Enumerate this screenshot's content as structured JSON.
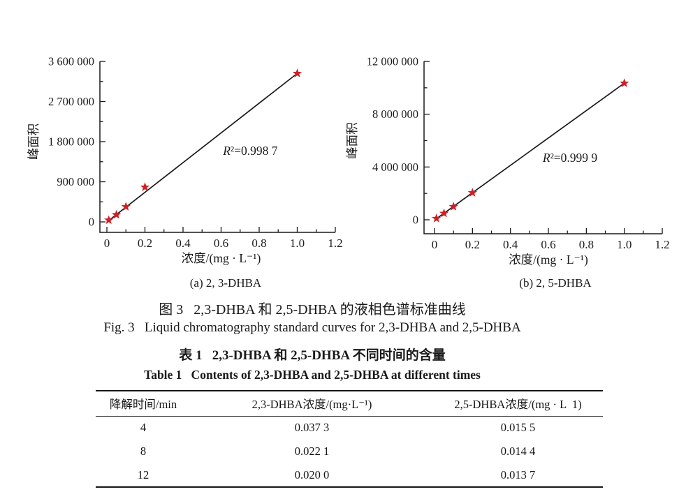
{
  "figure": {
    "caption_zh": "图 3   2,3-DHBA 和 2,5-DHBA 的液相色谱标准曲线",
    "caption_en": "Fig. 3   Liquid chromatography standard curves for 2,3-DHBA and 2,5-DHBA"
  },
  "table_section": {
    "caption_zh": "表 1   2,3-DHBA 和 2,5-DHBA 不同时间的含量",
    "caption_en": "Table 1   Contents of 2,3-DHBA and 2,5-DHBA at different times",
    "columns": [
      "降解时间/min",
      "2,3-DHBA浓度/(mg·L⁻¹)",
      "2,5-DHBA浓度/(mg · L  1)"
    ],
    "rows": [
      [
        "4",
        "0.037 3",
        "0.015 5"
      ],
      [
        "8",
        "0.022 1",
        "0.014 4"
      ],
      [
        "12",
        "0.020 0",
        "0.013 7"
      ]
    ]
  },
  "chart_data": [
    {
      "type": "scatter",
      "sublabel": "(a) 2, 3-DHBA",
      "xlabel": "浓度/(mg · L⁻¹)",
      "ylabel": "峰面积",
      "x": [
        0.01,
        0.05,
        0.1,
        0.2,
        1.0
      ],
      "y": [
        40000,
        160000,
        340000,
        780000,
        3330000
      ],
      "fit_line": [
        [
          0.01,
          30000
        ],
        [
          1.0,
          3330000
        ]
      ],
      "annotation": {
        "text": "R²=0.998 7",
        "x": 0.61,
        "y": 1500000
      },
      "xlim": [
        0,
        1.2
      ],
      "ylim": [
        0,
        3600000
      ],
      "xticks": [
        0,
        0.2,
        0.4,
        0.6,
        0.8,
        1.0,
        1.2
      ],
      "xtick_labels": [
        "0",
        "0.2",
        "0.4",
        "0.6",
        "0.8",
        "1.0",
        "1.2"
      ],
      "x_minor_step": 0.1,
      "yticks": [
        0,
        900000,
        1800000,
        2700000,
        3600000
      ],
      "ytick_labels": [
        "0",
        "900 000",
        "1 800 000",
        "2 700 000",
        "3 600 000"
      ],
      "y_minor_step": 450000,
      "grid": false,
      "legend": "none",
      "marker": "star",
      "marker_color": "#cd2026",
      "line_color": "#1a1a1a"
    },
    {
      "type": "scatter",
      "sublabel": "(b) 2, 5-DHBA",
      "xlabel": "浓度/(mg · L⁻¹)",
      "ylabel": "峰面积",
      "x": [
        0.01,
        0.05,
        0.1,
        0.2,
        1.0
      ],
      "y": [
        100000,
        490000,
        1000000,
        2050000,
        10350000
      ],
      "fit_line": [
        [
          0.01,
          80000
        ],
        [
          1.0,
          10350000
        ]
      ],
      "annotation": {
        "text": "R²=0.999 9",
        "x": 0.57,
        "y": 4400000
      },
      "xlim": [
        0,
        1.2
      ],
      "ylim": [
        0,
        12000000
      ],
      "xticks": [
        0,
        0.2,
        0.4,
        0.6,
        0.8,
        1.0,
        1.2
      ],
      "xtick_labels": [
        "0",
        "0.2",
        "0.4",
        "0.6",
        "0.8",
        "1.0",
        "1.2"
      ],
      "x_minor_step": 0.1,
      "yticks": [
        0,
        4000000,
        8000000,
        12000000
      ],
      "ytick_labels": [
        "0",
        "4 000 000",
        "8 000 000",
        "12 000 000"
      ],
      "y_minor_step": 2000000,
      "grid": false,
      "legend": "none",
      "marker": "star",
      "marker_color": "#cd2026",
      "line_color": "#1a1a1a"
    }
  ]
}
